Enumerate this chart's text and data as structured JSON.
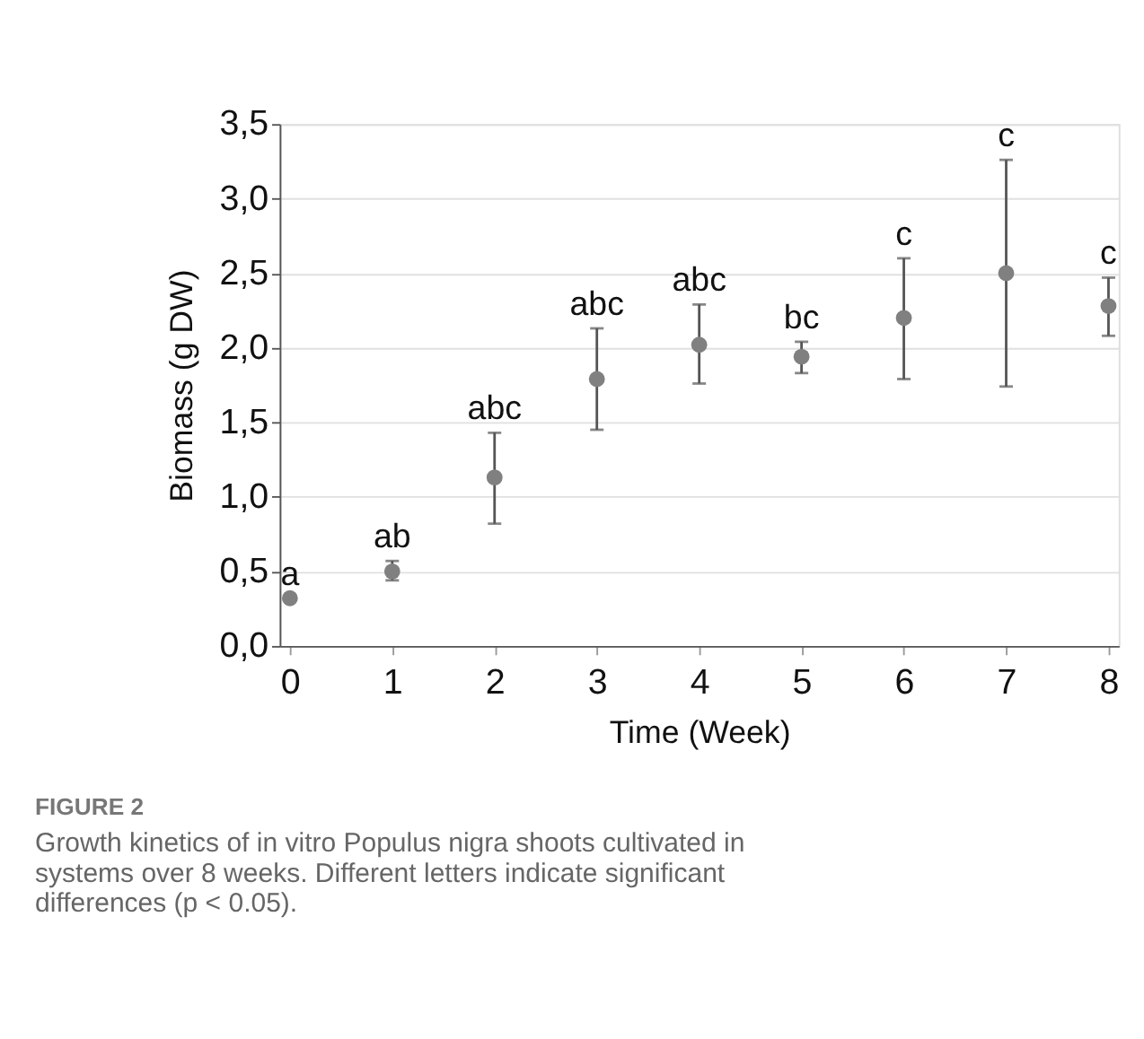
{
  "chart_data": {
    "type": "scatter",
    "xlabel": "Time (Week)",
    "ylabel": "Biomass (g DW)",
    "x": [
      0,
      1,
      2,
      3,
      4,
      5,
      6,
      7,
      8
    ],
    "series": [
      {
        "color": "#808080",
        "marker": "circle",
        "values": [
          0.32,
          0.5,
          1.13,
          1.79,
          2.02,
          1.94,
          2.2,
          2.5,
          2.28
        ],
        "errors": [
          null,
          [
            0.44,
            0.57
          ],
          [
            0.82,
            1.43
          ],
          [
            1.45,
            2.13
          ],
          [
            1.76,
            2.29
          ],
          [
            1.83,
            2.04
          ],
          [
            1.79,
            2.6
          ],
          [
            1.74,
            3.26
          ],
          [
            2.08,
            2.47
          ]
        ]
      }
    ],
    "xlim": [
      -0.1,
      8.1
    ],
    "xticks": [
      0,
      1,
      2,
      3,
      4,
      5,
      6,
      7,
      8
    ],
    "ylim": [
      0,
      3.5
    ],
    "yticks": [
      {
        "value": 0,
        "label": "0,0"
      },
      {
        "value": 0.5,
        "label": "0,5"
      },
      {
        "value": 1,
        "label": "1,0"
      },
      {
        "value": 1.5,
        "label": "1,5"
      },
      {
        "value": 2,
        "label": "2,0"
      },
      {
        "value": 2.5,
        "label": "2,5"
      },
      {
        "value": 3,
        "label": "3,0"
      },
      {
        "value": 3.5,
        "label": "3,5"
      }
    ],
    "grid": "y",
    "annotations": [
      {
        "text": "a",
        "x": 0,
        "y": 0.32
      },
      {
        "text": "ab",
        "x": 1,
        "y": 0.57
      },
      {
        "text": "abc",
        "x": 2,
        "y": 1.43
      },
      {
        "text": "abc",
        "x": 3,
        "y": 2.13
      },
      {
        "text": "abc",
        "x": 4,
        "y": 2.29
      },
      {
        "text": "bc",
        "x": 5,
        "y": 2.04
      },
      {
        "text": "c",
        "x": 6,
        "y": 2.6
      },
      {
        "text": "c",
        "x": 7,
        "y": 3.26
      },
      {
        "text": "c",
        "x": 8,
        "y": 2.47
      },
      "FIGURE 2",
      "Growth kinetics of in vitro Populus nigra shoots cultivated in systems over 8 weeks. Different letters indicate significant differences (p < 0.05)."
    ]
  }
}
